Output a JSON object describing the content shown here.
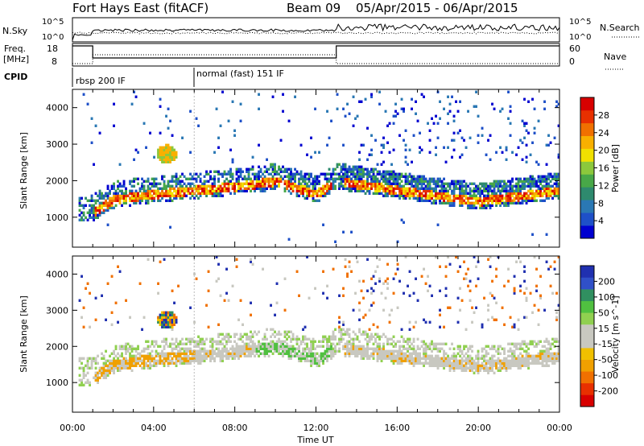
{
  "header": {
    "station": "Fort Hays East (fitACF)",
    "beam": "Beam 09",
    "daterange": "05/Apr/2015 - 06/Apr/2015"
  },
  "strip": {
    "nsky_label": "N.Sky",
    "nsky_ticks": [
      "10^5",
      "10^0"
    ],
    "nsearch_label": "N.Search",
    "nsearch_ticks": [
      "10^5",
      "10^0"
    ],
    "freq_label_1": "Freq.",
    "freq_label_2": "[MHz]",
    "freq_ticks": [
      "18",
      "8"
    ],
    "nave_label": "Nave",
    "nave_ticks": [
      "60",
      "0"
    ],
    "cpid_label": "CPID",
    "cpid_modes": [
      {
        "name": "rbsp 200 IF",
        "start_hour": 0
      },
      {
        "name": "normal (fast) 151 IF",
        "start_hour": 6
      }
    ]
  },
  "chart_data": [
    {
      "type": "heatmap",
      "name": "power",
      "ylabel": "Slant Range [km]",
      "xlabel": "Time UT",
      "x_ticks": [
        "00:00",
        "04:00",
        "08:00",
        "12:00",
        "16:00",
        "20:00",
        "00:00"
      ],
      "xlim_hours": [
        0,
        24
      ],
      "ylim_km": [
        180,
        4500
      ],
      "y_ticks": [
        1000,
        2000,
        3000,
        4000
      ],
      "colorbar": {
        "label": "Power [dB]",
        "ticks": [
          4,
          8,
          12,
          16,
          20,
          24,
          28
        ],
        "range": [
          0,
          30
        ],
        "colors": [
          "#0000d0",
          "#1e50c8",
          "#2a78b4",
          "#2e8a6e",
          "#48a848",
          "#8cc83c",
          "#f0e000",
          "#f8b000",
          "#f07000",
          "#e83000",
          "#d80000"
        ]
      },
      "echo_band_hour_km": [
        [
          1,
          1000
        ],
        [
          2,
          1350
        ],
        [
          4,
          1500
        ],
        [
          6,
          1600
        ],
        [
          8,
          1700
        ],
        [
          10,
          1850
        ],
        [
          12,
          1500
        ],
        [
          13,
          1850
        ],
        [
          16,
          1600
        ],
        [
          20,
          1300
        ],
        [
          24,
          1600
        ]
      ],
      "blob": {
        "hour": 4.6,
        "km": 2700
      }
    },
    {
      "type": "heatmap",
      "name": "velocity",
      "ylabel": "Slant Range [km]",
      "xlabel": "Time UT",
      "x_ticks": [
        "00:00",
        "04:00",
        "08:00",
        "12:00",
        "16:00",
        "20:00",
        "00:00"
      ],
      "xlim_hours": [
        0,
        24
      ],
      "ylim_km": [
        180,
        4500
      ],
      "y_ticks": [
        1000,
        2000,
        3000,
        4000
      ],
      "colorbar": {
        "label": "Velocity [m s^-1]",
        "ticks": [
          200,
          100,
          50,
          15,
          -15,
          -50,
          -100,
          -200
        ],
        "colors": [
          "#2030b0",
          "#3050c8",
          "#309060",
          "#50c040",
          "#90d050",
          "#c8c8c0",
          "#c8c8c0",
          "#f0c000",
          "#f0a000",
          "#f07000",
          "#e83000",
          "#d80000"
        ]
      }
    }
  ],
  "xaxis": {
    "label": "Time UT",
    "ticks": [
      "00:00",
      "04:00",
      "08:00",
      "12:00",
      "16:00",
      "20:00",
      "00:00"
    ]
  }
}
